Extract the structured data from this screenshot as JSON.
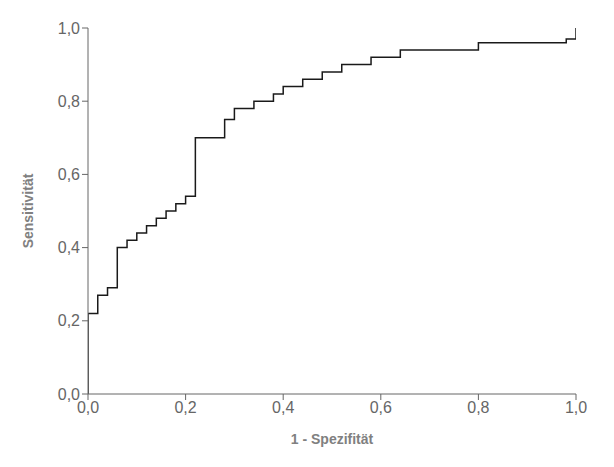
{
  "chart_data": {
    "type": "line",
    "xlabel": "1 - Spezifität",
    "ylabel": "Sensitivität",
    "color": "#1a1a1a",
    "grid": false,
    "x": [
      0.0,
      0.0,
      0.02,
      0.02,
      0.04,
      0.04,
      0.06,
      0.06,
      0.08,
      0.08,
      0.1,
      0.1,
      0.12,
      0.12,
      0.14,
      0.14,
      0.16,
      0.16,
      0.18,
      0.18,
      0.2,
      0.2,
      0.22,
      0.22,
      0.28,
      0.28,
      0.3,
      0.3,
      0.34,
      0.34,
      0.38,
      0.38,
      0.4,
      0.4,
      0.44,
      0.44,
      0.48,
      0.48,
      0.52,
      0.52,
      0.58,
      0.58,
      0.64,
      0.64,
      0.8,
      0.8,
      0.98,
      0.98,
      1.0,
      1.0
    ],
    "values": [
      0.0,
      0.22,
      0.22,
      0.27,
      0.27,
      0.29,
      0.29,
      0.4,
      0.4,
      0.42,
      0.42,
      0.44,
      0.44,
      0.46,
      0.46,
      0.48,
      0.48,
      0.5,
      0.5,
      0.52,
      0.52,
      0.54,
      0.54,
      0.7,
      0.7,
      0.75,
      0.75,
      0.78,
      0.78,
      0.8,
      0.8,
      0.82,
      0.82,
      0.84,
      0.84,
      0.86,
      0.86,
      0.88,
      0.88,
      0.9,
      0.9,
      0.92,
      0.92,
      0.94,
      0.94,
      0.96,
      0.96,
      0.97,
      0.97,
      1.0
    ],
    "xlim": [
      0.0,
      1.0
    ],
    "ylim": [
      0.0,
      1.0
    ],
    "xticks": [
      {
        "value": 0.0,
        "label": "0,0"
      },
      {
        "value": 0.2,
        "label": "0,2"
      },
      {
        "value": 0.4,
        "label": "0,4"
      },
      {
        "value": 0.6,
        "label": "0,6"
      },
      {
        "value": 0.8,
        "label": "0,8"
      },
      {
        "value": 1.0,
        "label": "1,0"
      }
    ],
    "yticks": [
      {
        "value": 0.0,
        "label": "0,0"
      },
      {
        "value": 0.2,
        "label": "0,2"
      },
      {
        "value": 0.4,
        "label": "0,4"
      },
      {
        "value": 0.6,
        "label": "0,6"
      },
      {
        "value": 0.8,
        "label": "0,8"
      },
      {
        "value": 1.0,
        "label": "1,0"
      }
    ]
  }
}
